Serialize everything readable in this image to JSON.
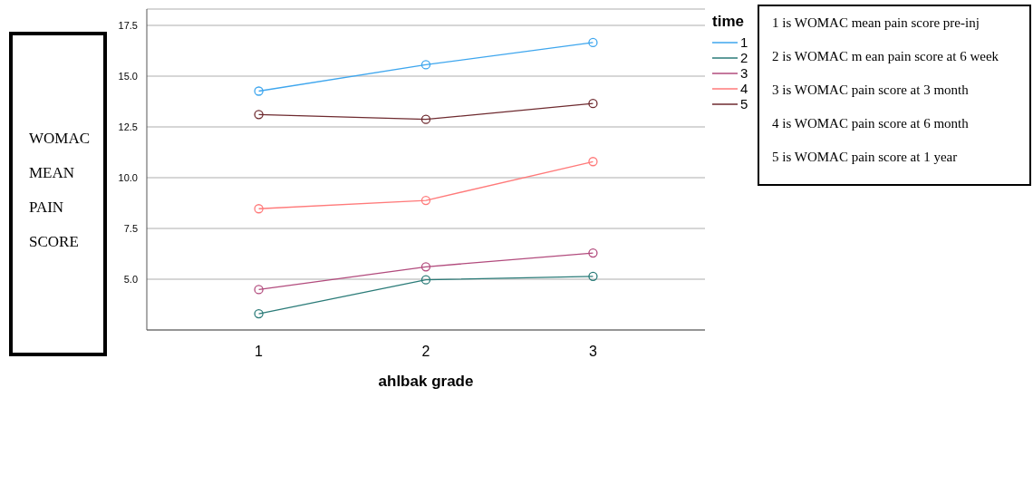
{
  "chart_data": {
    "type": "line",
    "xlabel": "ahlbak grade",
    "ylabel": "WOMAC MEAN PAIN SCORE",
    "legend_title": "time",
    "categories": [
      "1",
      "2",
      "3"
    ],
    "series": [
      {
        "name": "1",
        "color": "#3ea6ee",
        "values": [
          14.26,
          15.56,
          16.65
        ]
      },
      {
        "name": "2",
        "color": "#2a7b78",
        "values": [
          3.3,
          4.97,
          5.14
        ]
      },
      {
        "name": "3",
        "color": "#b24b7d",
        "values": [
          4.49,
          5.61,
          6.29
        ]
      },
      {
        "name": "4",
        "color": "#ff7a7a",
        "values": [
          8.47,
          8.88,
          10.79
        ]
      },
      {
        "name": "5",
        "color": "#6e2a2f",
        "values": [
          13.11,
          12.87,
          13.65
        ]
      }
    ],
    "ylim": [
      2.5,
      18.3
    ],
    "yticks": [
      {
        "value": 5,
        "label": "5.0"
      },
      7.5,
      {
        "value": 10,
        "label": "10.0"
      },
      12.5,
      {
        "value": 15,
        "label": "15.0"
      },
      17.5
    ],
    "grid": "y",
    "legend": "top right",
    "marker": "circle",
    "line_style": "solid",
    "annotations": [
      "1 is WOMAC mean pain score pre-inj",
      "2 is WOMAC m ean pain score at 6 week",
      "3 is WOMAC pain score at 3 month",
      "4 is WOMAC pain score at 6 month",
      "5 is WOMAC pain score at 1 year"
    ]
  }
}
